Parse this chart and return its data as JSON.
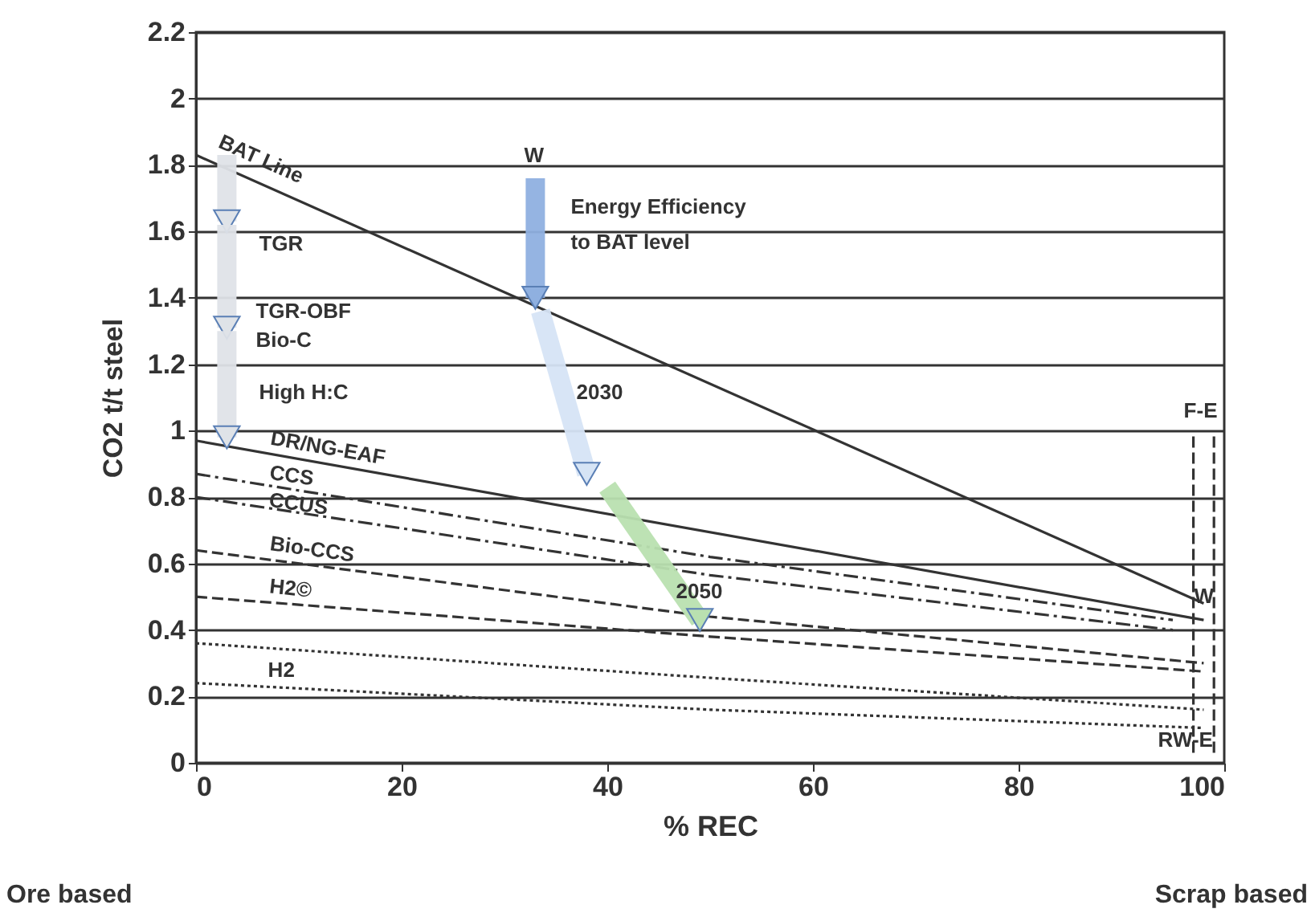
{
  "chart_data": {
    "type": "line",
    "xlabel": "% REC",
    "ylabel": "CO2 t/t steel",
    "xlim": [
      0,
      100
    ],
    "ylim": [
      0,
      2.2
    ],
    "xticks": [
      0,
      20,
      40,
      60,
      80,
      100
    ],
    "yticks": [
      0,
      0.2,
      0.4,
      0.6,
      0.8,
      1,
      1.2,
      1.4,
      1.6,
      1.8,
      2,
      2.2
    ],
    "grid": "y",
    "series": [
      {
        "x": [
          0,
          98
        ],
        "values": [
          1.83,
          0.48
        ],
        "color": "#333333",
        "line_style": "solid"
      },
      {
        "x": [
          0,
          98
        ],
        "values": [
          0.97,
          0.43
        ],
        "color": "#333333",
        "line_style": "solid"
      },
      {
        "x": [
          0,
          50,
          95
        ],
        "values": [
          0.87,
          0.62,
          0.43
        ],
        "color": "#333333",
        "line_style": "dashdot"
      },
      {
        "x": [
          0,
          50,
          95
        ],
        "values": [
          0.8,
          0.565,
          0.4
        ],
        "color": "#333333",
        "line_style": "dashdot"
      },
      {
        "x": [
          0,
          50,
          98
        ],
        "values": [
          0.64,
          0.44,
          0.3
        ],
        "color": "#333333",
        "line_style": "dashed"
      },
      {
        "x": [
          0,
          50,
          98
        ],
        "values": [
          0.5,
          0.38,
          0.275
        ],
        "color": "#333333",
        "line_style": "dashed"
      },
      {
        "x": [
          0,
          50,
          98
        ],
        "values": [
          0.36,
          0.256,
          0.16
        ],
        "color": "#333333",
        "line_style": "dotted"
      },
      {
        "x": [
          0,
          50,
          98
        ],
        "values": [
          0.24,
          0.16,
          0.105
        ],
        "color": "#333333",
        "line_style": "dotted"
      },
      {
        "x": [
          97,
          97
        ],
        "values": [
          0.03,
          1.0
        ],
        "color": "#333333",
        "line_style": "dashed"
      },
      {
        "x": [
          99,
          99
        ],
        "values": [
          0.03,
          1.0
        ],
        "color": "#333333",
        "line_style": "dashed"
      },
      {
        "x": [
          3,
          3
        ],
        "values": [
          1.83,
          1.63
        ],
        "color": "#dfe3e8",
        "marker": "triangle"
      },
      {
        "x": [
          3,
          3
        ],
        "values": [
          1.62,
          1.31
        ],
        "color": "#dfe3e8",
        "marker": "triangle"
      },
      {
        "x": [
          3,
          3
        ],
        "values": [
          1.3,
          0.98
        ],
        "color": "#dfe3e8",
        "marker": "triangle"
      },
      {
        "x": [
          33,
          33
        ],
        "values": [
          1.76,
          1.4
        ],
        "color": "#8fb0e0",
        "marker": "triangle"
      },
      {
        "x": [
          33.5,
          38
        ],
        "values": [
          1.36,
          0.87
        ],
        "color": "#d6e4f5",
        "marker": "triangle"
      },
      {
        "x": [
          40,
          49
        ],
        "values": [
          0.83,
          0.43
        ],
        "color": "#b9e0b0",
        "marker": "triangle"
      }
    ],
    "annotations": [
      {
        "text": "BAT Line",
        "x": 0,
        "y": 1.83
      },
      {
        "text": "TGR",
        "x": 3,
        "y": 1.63
      },
      {
        "text": "TGR-OBF",
        "x": 3,
        "y": 1.31
      },
      {
        "text": "Bio-C",
        "x": 3,
        "y": 1.31
      },
      {
        "text": "High H:C",
        "x": 3,
        "y": 0.98
      },
      {
        "text": "DR/NG-EAF",
        "x": 7,
        "y": 0.93
      },
      {
        "text": "CCS",
        "x": 7,
        "y": 0.835
      },
      {
        "text": "CCUS",
        "x": 7,
        "y": 0.767
      },
      {
        "text": "Bio-CCS",
        "x": 7,
        "y": 0.612
      },
      {
        "text": "H2©",
        "x": 7,
        "y": 0.483
      },
      {
        "text": "H2",
        "x": 7,
        "y": 0.345
      },
      {
        "text": "W",
        "x": 33,
        "y": 1.76
      },
      {
        "text": "Energy Efficiency",
        "x": 33,
        "y": 1.76
      },
      {
        "text": "to BAT level",
        "x": 33,
        "y": 1.76
      },
      {
        "text": "2030",
        "x": 35.75,
        "y": 1.115
      },
      {
        "text": "2050",
        "x": 44.5,
        "y": 0.63
      },
      {
        "text": "W",
        "x": 98,
        "y": 0.48
      },
      {
        "text": "F-E",
        "x": 97,
        "y": 1.0
      },
      {
        "text": "RW-E",
        "x": 97,
        "y": 0.03
      },
      "Ore based",
      "Scrap based"
    ]
  }
}
